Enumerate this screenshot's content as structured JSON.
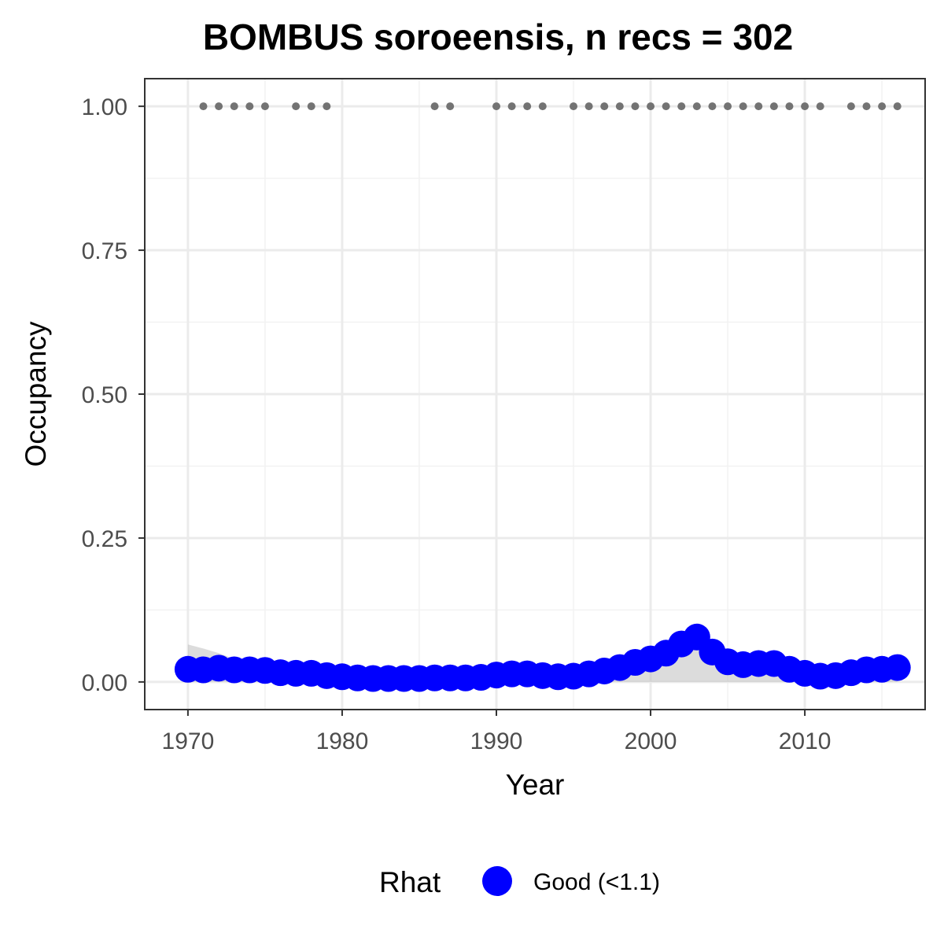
{
  "chart_data": {
    "type": "line",
    "title": "BOMBUS soroeensis, n recs = 302",
    "xlabel": "Year",
    "ylabel": "Occupancy",
    "xlim": [
      1967.2,
      2017.8
    ],
    "ylim": [
      -0.048,
      1.048
    ],
    "x_ticks": [
      1970,
      1980,
      1990,
      2000,
      2010
    ],
    "x_tick_labels": [
      "1970",
      "1980",
      "1990",
      "2000",
      "2010"
    ],
    "y_ticks": [
      0,
      0.25,
      0.5,
      0.75,
      1.0
    ],
    "y_tick_labels": [
      "0.00",
      "0.25",
      "0.50",
      "0.75",
      "1.00"
    ],
    "grid": true,
    "series": [
      {
        "name": "Good (<1.1)",
        "color": "#0000ff",
        "x": [
          1970,
          1971,
          1972,
          1973,
          1974,
          1975,
          1976,
          1977,
          1978,
          1979,
          1980,
          1981,
          1982,
          1983,
          1984,
          1985,
          1986,
          1987,
          1988,
          1989,
          1990,
          1991,
          1992,
          1993,
          1994,
          1995,
          1996,
          1997,
          1998,
          1999,
          2000,
          2001,
          2002,
          2003,
          2004,
          2005,
          2006,
          2007,
          2008,
          2009,
          2010,
          2011,
          2012,
          2013,
          2014,
          2015,
          2016
        ],
        "y": [
          0.022,
          0.021,
          0.024,
          0.021,
          0.021,
          0.02,
          0.016,
          0.015,
          0.015,
          0.011,
          0.009,
          0.007,
          0.006,
          0.006,
          0.006,
          0.006,
          0.007,
          0.007,
          0.007,
          0.008,
          0.012,
          0.014,
          0.014,
          0.011,
          0.009,
          0.01,
          0.014,
          0.019,
          0.025,
          0.034,
          0.04,
          0.05,
          0.066,
          0.078,
          0.052,
          0.035,
          0.03,
          0.032,
          0.032,
          0.022,
          0.015,
          0.01,
          0.011,
          0.016,
          0.021,
          0.022,
          0.025
        ],
        "ci_lower": [
          0.0,
          0.0,
          0.0,
          0.0,
          0.0,
          0.0,
          0.0,
          0.0,
          0.0,
          0.0,
          0.0,
          0.0,
          0.0,
          0.0,
          0.0,
          0.0,
          0.0,
          0.0,
          0.0,
          0.0,
          0.0,
          0.0,
          0.0,
          0.0,
          0.0,
          0.0,
          0.0,
          0.0,
          0.0,
          0.0,
          0.0,
          0.0,
          0.0,
          0.0,
          0.0,
          0.0,
          0.0,
          0.0,
          0.0,
          0.0,
          0.0,
          0.0,
          0.0,
          0.0,
          0.0,
          0.0,
          0.0
        ],
        "ci_upper": [
          0.065,
          0.058,
          0.05,
          0.04,
          0.036,
          0.034,
          0.03,
          0.028,
          0.026,
          0.022,
          0.02,
          0.018,
          0.016,
          0.015,
          0.015,
          0.015,
          0.016,
          0.016,
          0.016,
          0.018,
          0.022,
          0.024,
          0.024,
          0.022,
          0.02,
          0.02,
          0.024,
          0.03,
          0.036,
          0.046,
          0.054,
          0.066,
          0.082,
          0.094,
          0.068,
          0.05,
          0.044,
          0.046,
          0.046,
          0.036,
          0.028,
          0.022,
          0.022,
          0.028,
          0.034,
          0.036,
          0.042
        ],
        "ci_color": "#bfbfbf"
      }
    ],
    "records": {
      "y": 1.0,
      "color": "#737373",
      "x": [
        1971,
        1972,
        1973,
        1974,
        1975,
        1977,
        1978,
        1979,
        1986,
        1987,
        1990,
        1991,
        1992,
        1993,
        1995,
        1996,
        1997,
        1998,
        1999,
        2000,
        2001,
        2002,
        2003,
        2004,
        2005,
        2006,
        2007,
        2008,
        2009,
        2010,
        2011,
        2013,
        2014,
        2015,
        2016
      ]
    },
    "legend": {
      "title": "Rhat",
      "position": "bottom",
      "entries": [
        {
          "label": "Good (<1.1)",
          "color": "#0000ff"
        }
      ]
    }
  }
}
